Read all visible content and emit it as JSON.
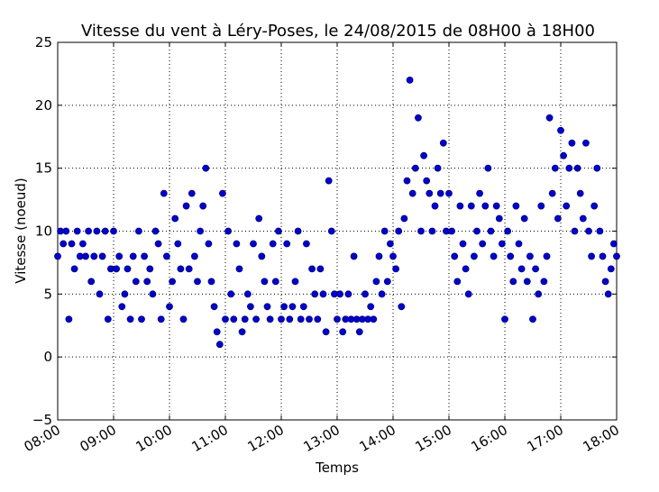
{
  "chart_data": {
    "type": "scatter",
    "title": "Vitesse du vent à Léry-Poses, le 24/08/2015 de 08H00 à 18H00",
    "x_label": "Temps",
    "y_label": "Vitesse (noeud)",
    "color": "#0000cc",
    "edge_color": "#000080",
    "grid": true,
    "xlim": [
      8,
      18
    ],
    "ylim": [
      -5,
      25
    ],
    "xticks": [
      {
        "value": 8,
        "label": "08:00"
      },
      {
        "value": 9,
        "label": "09:00"
      },
      {
        "value": 10,
        "label": "10:00"
      },
      {
        "value": 11,
        "label": "11:00"
      },
      {
        "value": 12,
        "label": "12:00"
      },
      {
        "value": 13,
        "label": "13:00"
      },
      {
        "value": 14,
        "label": "14:00"
      },
      {
        "value": 15,
        "label": "15:00"
      },
      {
        "value": 16,
        "label": "16:00"
      },
      {
        "value": 17,
        "label": "17:00"
      },
      {
        "value": 18,
        "label": "18:00"
      }
    ],
    "yticks": [
      {
        "value": -5,
        "label": "−5"
      },
      0,
      5,
      10,
      15,
      20,
      25
    ],
    "x": [
      8,
      8.05,
      8.1,
      8.15,
      8.2,
      8.25,
      8.3,
      8.35,
      8.4,
      8.45,
      8.5,
      8.55,
      8.6,
      8.65,
      8.7,
      8.75,
      8.8,
      8.85,
      8.9,
      8.95,
      9,
      9.05,
      9.1,
      9.15,
      9.2,
      9.25,
      9.3,
      9.35,
      9.4,
      9.45,
      9.5,
      9.55,
      9.6,
      9.65,
      9.7,
      9.75,
      9.8,
      9.85,
      9.9,
      9.95,
      10,
      10.05,
      10.1,
      10.15,
      10.2,
      10.25,
      10.3,
      10.35,
      10.4,
      10.45,
      10.5,
      10.55,
      10.6,
      10.65,
      10.7,
      10.75,
      10.8,
      10.85,
      10.9,
      10.95,
      11,
      11.05,
      11.1,
      11.15,
      11.2,
      11.25,
      11.3,
      11.35,
      11.4,
      11.45,
      11.5,
      11.55,
      11.6,
      11.65,
      11.7,
      11.75,
      11.8,
      11.85,
      11.9,
      11.95,
      12,
      12.05,
      12.1,
      12.15,
      12.2,
      12.25,
      12.3,
      12.35,
      12.4,
      12.45,
      12.5,
      12.55,
      12.6,
      12.65,
      12.7,
      12.75,
      12.8,
      12.85,
      12.9,
      12.95,
      13,
      13.05,
      13.1,
      13.15,
      13.2,
      13.25,
      13.3,
      13.35,
      13.4,
      13.45,
      13.5,
      13.55,
      13.6,
      13.65,
      13.7,
      13.75,
      13.8,
      13.85,
      13.9,
      13.95,
      14,
      14.05,
      14.1,
      14.15,
      14.2,
      14.25,
      14.3,
      14.35,
      14.4,
      14.45,
      14.5,
      14.55,
      14.6,
      14.65,
      14.7,
      14.75,
      14.8,
      14.85,
      14.9,
      14.95,
      15,
      15.05,
      15.1,
      15.15,
      15.2,
      15.25,
      15.3,
      15.35,
      15.4,
      15.45,
      15.5,
      15.55,
      15.6,
      15.65,
      15.7,
      15.75,
      15.8,
      15.85,
      15.9,
      15.95,
      16,
      16.05,
      16.1,
      16.15,
      16.2,
      16.25,
      16.3,
      16.35,
      16.4,
      16.45,
      16.5,
      16.55,
      16.6,
      16.65,
      16.7,
      16.75,
      16.8,
      16.85,
      16.9,
      16.95,
      17,
      17.05,
      17.1,
      17.15,
      17.2,
      17.25,
      17.3,
      17.35,
      17.4,
      17.45,
      17.5,
      17.55,
      17.6,
      17.65,
      17.7,
      17.75,
      17.8,
      17.85,
      17.9,
      17.95,
      18
    ],
    "values": [
      8,
      10,
      9,
      10,
      3,
      9,
      7,
      10,
      8,
      9,
      8,
      10,
      6,
      8,
      10,
      5,
      8,
      10,
      3,
      7,
      10,
      7,
      8,
      4,
      5,
      7,
      3,
      8,
      6,
      10,
      3,
      8,
      6,
      7,
      5,
      10,
      9,
      3,
      13,
      8,
      4,
      6,
      11,
      9,
      7,
      3,
      12,
      7,
      13,
      8,
      6,
      10,
      12,
      15,
      9,
      6,
      4,
      2,
      1,
      13,
      3,
      10,
      5,
      3,
      9,
      7,
      2,
      3,
      5,
      4,
      9,
      3,
      11,
      8,
      6,
      4,
      3,
      9,
      6,
      10,
      3,
      4,
      9,
      3,
      4,
      6,
      10,
      3,
      4,
      9,
      3,
      7,
      5,
      3,
      7,
      5,
      2,
      14,
      10,
      5,
      3,
      5,
      2,
      3,
      5,
      3,
      8,
      3,
      2,
      3,
      5,
      3,
      4,
      3,
      6,
      8,
      5,
      10,
      6,
      9,
      8,
      7,
      10,
      4,
      11,
      14,
      22,
      13,
      15,
      19,
      10,
      16,
      14,
      13,
      10,
      12,
      15,
      13,
      17,
      10,
      13,
      10,
      8,
      6,
      12,
      9,
      7,
      5,
      12,
      8,
      10,
      13,
      9,
      12,
      15,
      10,
      8,
      12,
      11,
      9,
      3,
      10,
      8,
      6,
      12,
      9,
      7,
      11,
      6,
      8,
      3,
      7,
      5,
      12,
      6,
      8,
      19,
      13,
      15,
      11,
      18,
      16,
      12,
      15,
      17,
      10,
      15,
      13,
      11,
      17,
      10,
      8,
      12,
      15,
      10,
      8,
      6,
      5,
      7,
      9,
      8
    ]
  }
}
